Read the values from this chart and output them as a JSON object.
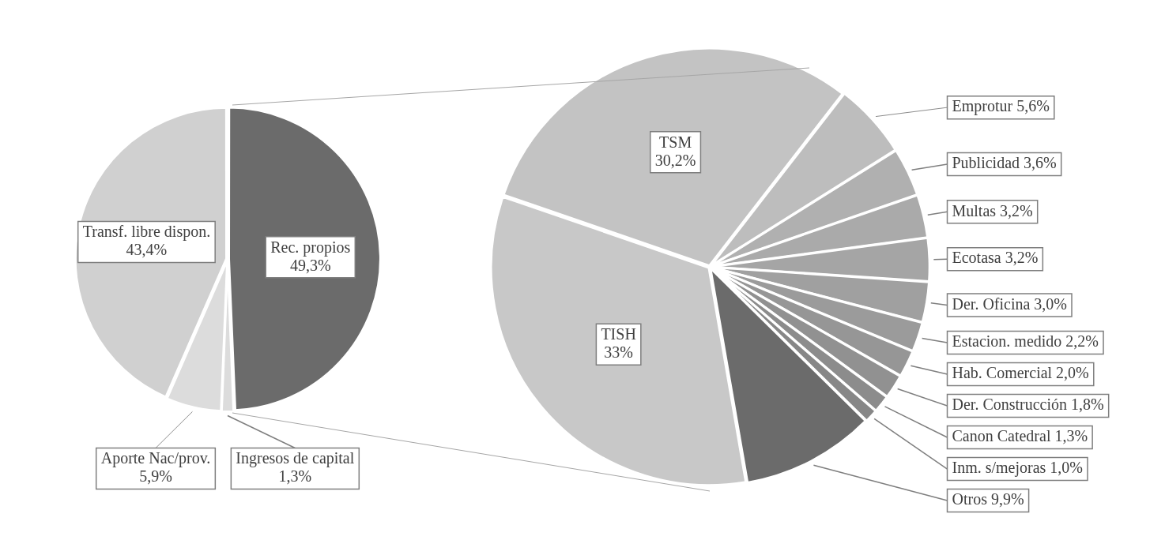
{
  "chart_data": [
    {
      "type": "pie",
      "categories": [
        "Rec. propios",
        "Ingresos de capital",
        "Aporte Nac/prov.",
        "Transf. libre dispon."
      ],
      "values": [
        49.3,
        1.3,
        5.9,
        43.4
      ],
      "colors": [
        "#6b6b6b",
        "#dcdcdc",
        "#dcdcdc",
        "#d0d0d0"
      ],
      "value_labels": [
        "49,3%",
        "1,3%",
        "5,9%",
        "43,4%"
      ]
    },
    {
      "type": "pie",
      "categories": [
        "TSM",
        "Emprotur",
        "Publicidad",
        "Multas",
        "Ecotasa",
        "Der. Oficina",
        "Estacion. medido",
        "Hab. Comercial",
        "Der. Construcción",
        "Canon Catedral",
        "Inm. s/mejoras",
        "Otros",
        "TISH"
      ],
      "values": [
        30.2,
        5.6,
        3.6,
        3.2,
        3.2,
        3.0,
        2.2,
        2.0,
        1.8,
        1.3,
        1.0,
        9.9,
        33
      ],
      "colors": [
        "#c3c3c3",
        "#bdbdbd",
        "#b0b0b0",
        "#aaaaaa",
        "#a5a5a5",
        "#a0a0a0",
        "#9b9b9b",
        "#969696",
        "#919191",
        "#8c8c8c",
        "#878787",
        "#6b6b6b",
        "#c8c8c8"
      ],
      "value_labels": [
        "30,2%",
        "5,6%",
        "3,6%",
        "3,2%",
        "3,2%",
        "3,0%",
        "2,2%",
        "2,0%",
        "1,8%",
        "1,3%",
        "1,0%",
        "9,9%",
        "33%"
      ]
    }
  ]
}
